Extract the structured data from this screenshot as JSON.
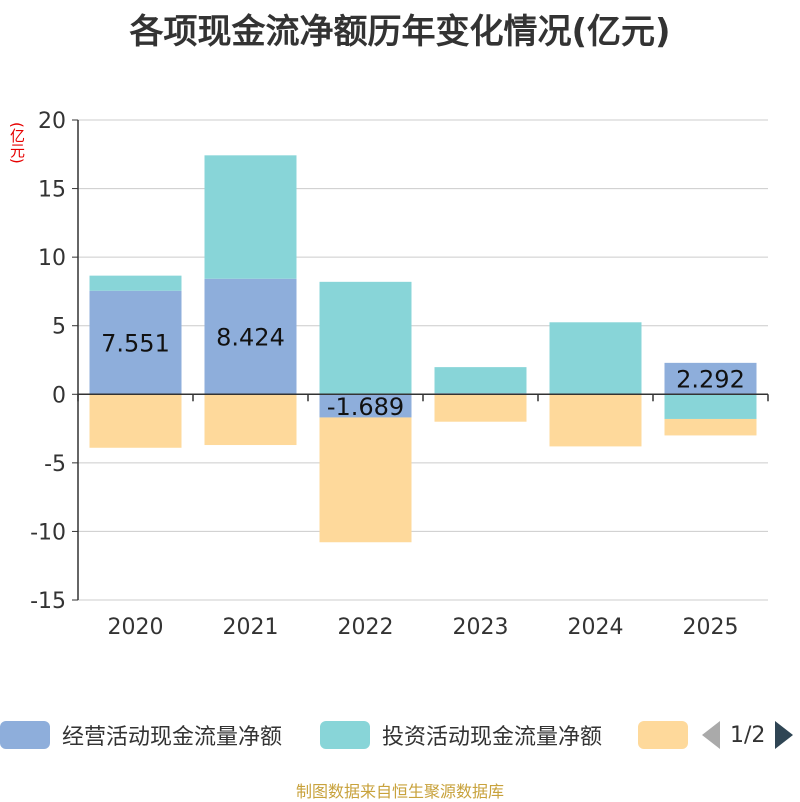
{
  "chart_data": {
    "type": "bar",
    "stacked": true,
    "title": "各项现金流净额历年变化情况(亿元)",
    "ylabel": "(亿元)",
    "xlabel": "",
    "ylim": [
      -15,
      20
    ],
    "yticks": [
      20,
      15,
      10,
      5,
      0,
      -5,
      -10,
      -15
    ],
    "categories": [
      "2020",
      "2021",
      "2022",
      "2023",
      "2024",
      "2025"
    ],
    "series": [
      {
        "name": "经营活动现金流量净额",
        "color": "#8eaedb",
        "values": [
          7.551,
          8.424,
          -1.689,
          0.08,
          0.05,
          2.292
        ],
        "labels": [
          "7.551",
          "8.424",
          "-1.689",
          "",
          "",
          "2.292"
        ]
      },
      {
        "name": "投资活动现金流量净额",
        "color": "#88d5d8",
        "values": [
          1.1,
          9.0,
          8.2,
          1.9,
          5.2,
          -1.8
        ]
      },
      {
        "name": "",
        "color": "#fed99b",
        "values": [
          -3.9,
          -3.7,
          -9.1,
          -2.0,
          -3.8,
          -1.2
        ]
      }
    ]
  },
  "legend": {
    "item0": "经营活动现金流量净额",
    "item1": "投资活动现金流量净额",
    "page": "1/2"
  },
  "footer": "制图数据来自恒生聚源数据库"
}
